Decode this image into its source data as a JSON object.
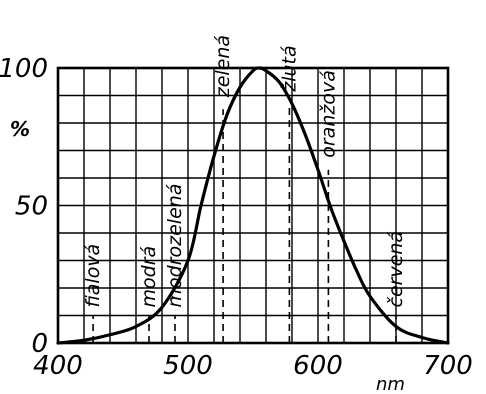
{
  "chart_data": {
    "type": "line",
    "title": "",
    "xlabel": "nm",
    "ylabel": "%",
    "xlim": [
      400,
      700
    ],
    "ylim": [
      0,
      100
    ],
    "x_ticks": [
      400,
      500,
      600,
      700
    ],
    "x_tick_labels": [
      "400",
      "500",
      "600",
      "700"
    ],
    "y_ticks": [
      0,
      50,
      100
    ],
    "y_tick_labels": [
      "0",
      "50",
      "100"
    ],
    "grid": true,
    "grid_step_x": 20,
    "grid_step_y": 10,
    "series": [
      {
        "name": "",
        "x": [
          400,
          420,
          440,
          460,
          480,
          500,
          510,
          520,
          530,
          540,
          550,
          555,
          560,
          570,
          580,
          590,
          600,
          610,
          620,
          630,
          640,
          660,
          680,
          700
        ],
        "y": [
          0,
          1,
          3,
          6,
          13,
          30,
          50,
          68,
          83,
          93,
          99,
          100,
          99,
          95,
          87,
          76,
          63,
          49,
          37,
          26,
          17,
          6,
          2,
          0
        ]
      }
    ],
    "annotations": [
      {
        "label": "fialová",
        "x": 427,
        "y": 10
      },
      {
        "label": "modrá",
        "x": 470,
        "y": 10
      },
      {
        "label": "modrozelená",
        "x": 490,
        "y": 10
      },
      {
        "label": "zelená",
        "x": 527,
        "y": 85
      },
      {
        "label": "žlutá",
        "x": 578,
        "y": 87
      },
      {
        "label": "oranžová",
        "x": 608,
        "y": 63
      },
      {
        "label": "červená",
        "x": 660,
        "y": 10
      }
    ]
  }
}
